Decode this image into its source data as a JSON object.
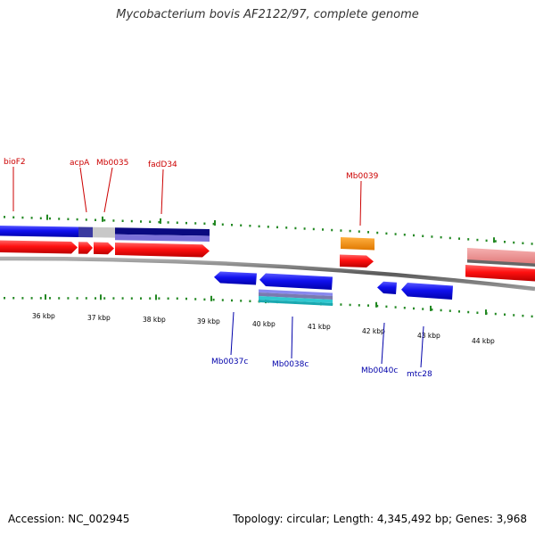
{
  "title": "Mycobacterium bovis AF2122/97, complete genome",
  "footer": {
    "accession": "Accession: NC_002945",
    "summary": "Topology: circular; Length: 4,345,492 bp; Genes: 3,968"
  },
  "colors": {
    "forward_label": "#cc0000",
    "reverse_label": "#0000aa",
    "tick": "#228822",
    "backbone": "#777777"
  },
  "ruler_labels": [
    "36 kbp",
    "37 kbp",
    "38 kbp",
    "39 kbp",
    "40 kbp",
    "41 kbp",
    "42 kbp",
    "43 kbp",
    "44 kbp"
  ],
  "forward_gene_labels": [
    "bioF2",
    "acpA",
    "Mb0035",
    "fadD34",
    "Mb0039"
  ],
  "reverse_gene_labels": [
    "Mb0037c",
    "Mb0038c",
    "Mb0040c",
    "mtc28"
  ]
}
